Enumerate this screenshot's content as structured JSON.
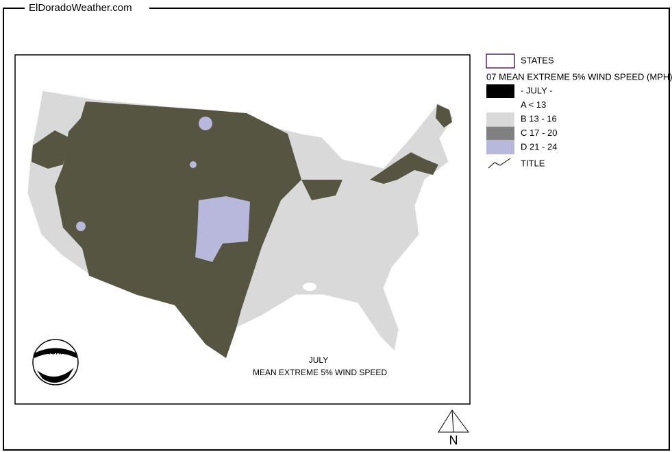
{
  "header": {
    "site": "ElDoradoWeather.com"
  },
  "legend": {
    "states": "STATES",
    "title": "07 MEAN EXTREME 5% WIND SPEED (MPH)",
    "items": [
      {
        "label": "- JULY -",
        "color": "#000000"
      },
      {
        "label": "A < 13",
        "color": "#ffffff"
      },
      {
        "label": "B 13 - 16",
        "color": "#d9d9d9"
      },
      {
        "label": "C 17 - 20",
        "color": "#808080"
      },
      {
        "label": "D 21 - 24",
        "color": "#b8b8dc"
      }
    ],
    "title_item": "TITLE"
  },
  "map": {
    "caption": [
      "JULY",
      "MEAN EXTREME 5% WIND SPEED"
    ],
    "logo": "NOAA",
    "north": "N"
  }
}
